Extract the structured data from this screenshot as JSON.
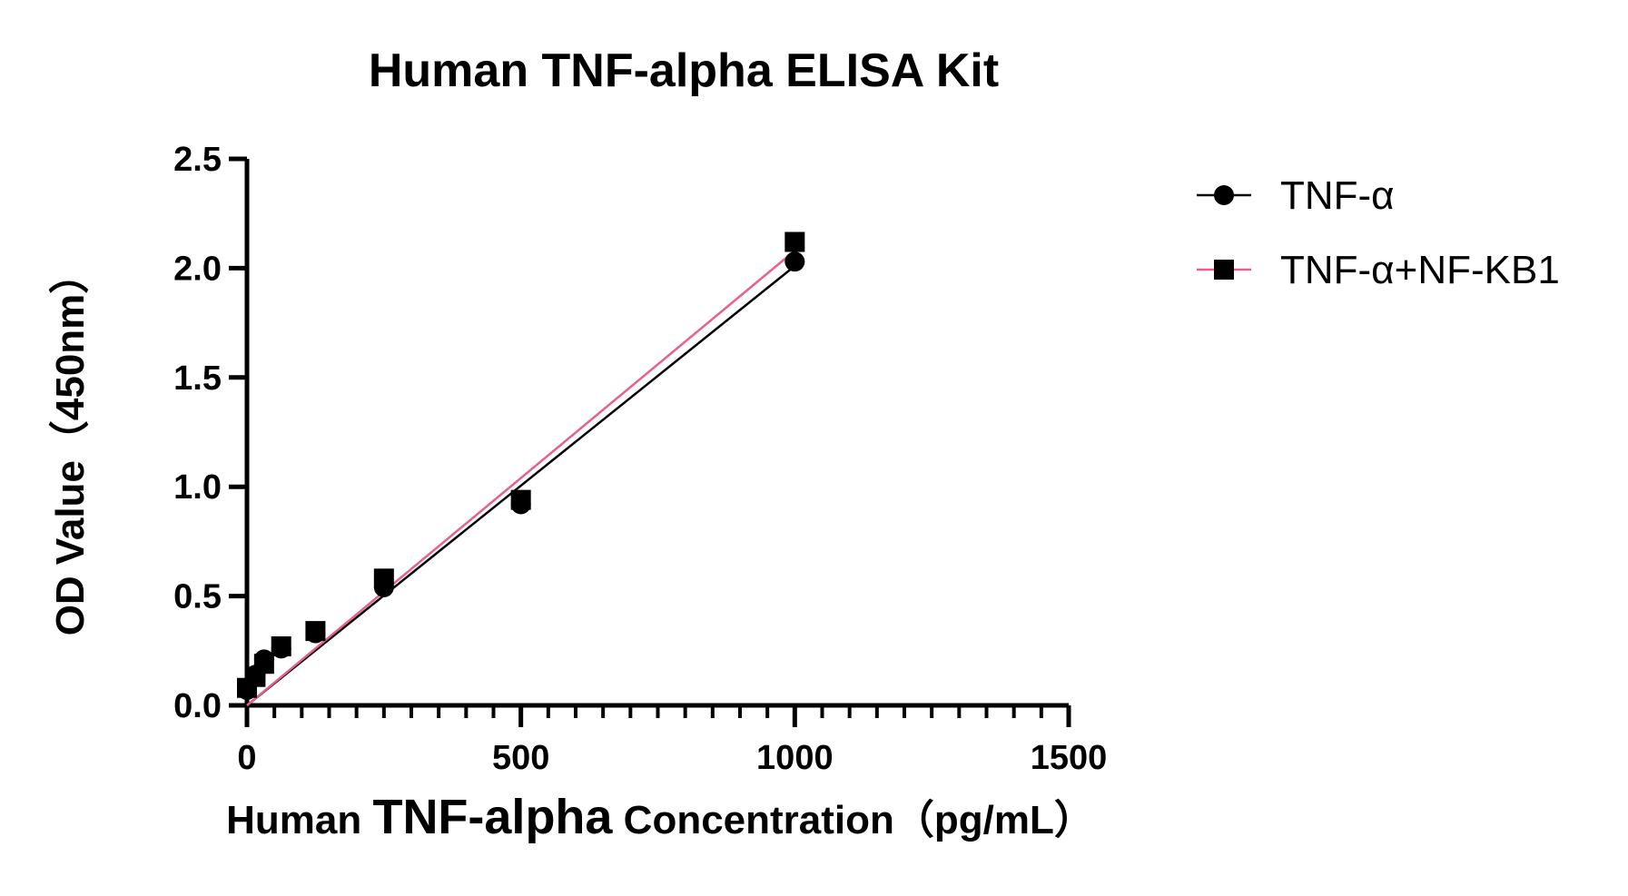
{
  "chart_data": {
    "type": "scatter",
    "title": "Human TNF-alpha ELISA Kit",
    "xlabel": {
      "part1": "Human ",
      "part2": "TNF-alpha",
      "part3": "  Concentration（pg/mL）"
    },
    "ylabel": "OD Value（450nm）",
    "xlim": [
      0,
      1500
    ],
    "ylim": [
      0,
      2.5
    ],
    "x_ticks": [
      0,
      500,
      1000,
      1500
    ],
    "x_tick_labels": [
      "0",
      "500",
      "1000",
      "1500"
    ],
    "y_ticks": [
      0,
      0.5,
      1.0,
      1.5,
      2.0,
      2.5
    ],
    "y_tick_labels": [
      "0.0",
      "0.5",
      "1.0",
      "1.5",
      "2.0",
      "2.5"
    ],
    "legend_position": "right",
    "series": [
      {
        "name": "TNF-α",
        "marker": "circle",
        "color": "#000000",
        "line_color": "#000000",
        "x": [
          0,
          15.6,
          31.25,
          62.5,
          125,
          250,
          500,
          1000
        ],
        "y": [
          0.07,
          0.14,
          0.21,
          0.26,
          0.33,
          0.54,
          0.92,
          2.03
        ],
        "fit_line": {
          "x": [
            0,
            1000
          ],
          "y": [
            0.0,
            2.01
          ]
        }
      },
      {
        "name": "TNF-α+NF-KB1",
        "marker": "square",
        "color": "#000000",
        "line_color": "#e8608c",
        "x": [
          0,
          15.6,
          31.25,
          62.5,
          125,
          250,
          500,
          1000
        ],
        "y": [
          0.08,
          0.13,
          0.19,
          0.27,
          0.34,
          0.58,
          0.94,
          2.12
        ],
        "fit_line": {
          "x": [
            0,
            1000
          ],
          "y": [
            0.0,
            2.08
          ]
        }
      }
    ]
  }
}
